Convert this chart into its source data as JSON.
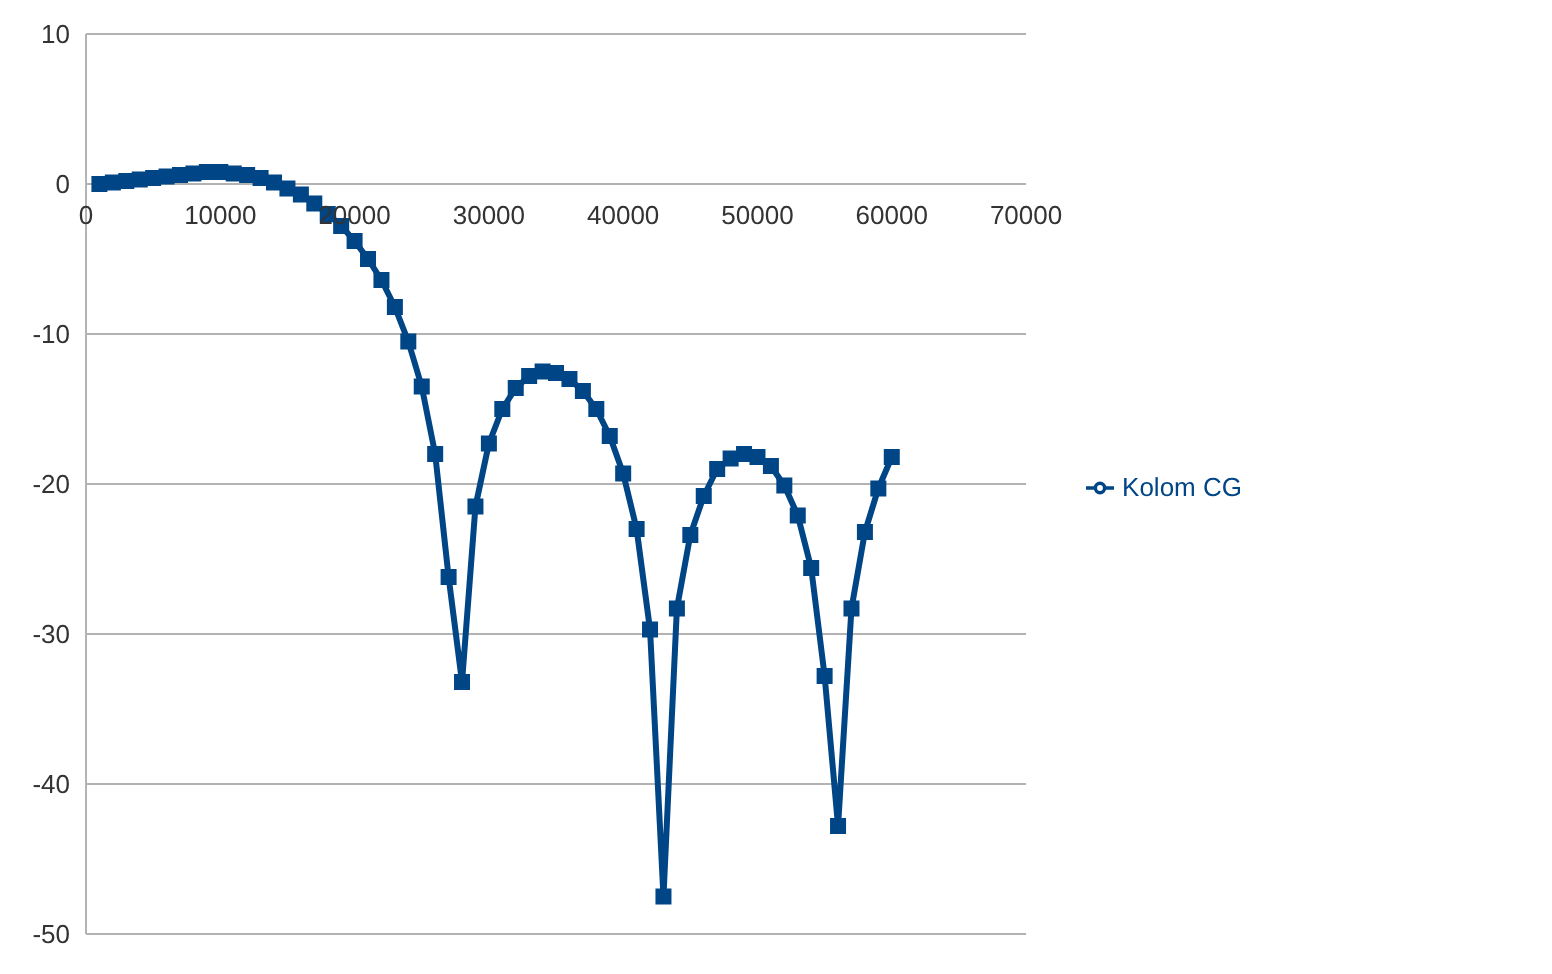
{
  "chart_data": {
    "type": "line",
    "x": [
      1000,
      2000,
      3000,
      4000,
      5000,
      6000,
      7000,
      8000,
      9000,
      10000,
      11000,
      12000,
      13000,
      14000,
      15000,
      16000,
      17000,
      18000,
      19000,
      20000,
      21000,
      22000,
      23000,
      24000,
      25000,
      26000,
      27000,
      28000,
      29000,
      30000,
      31000,
      32000,
      33000,
      34000,
      35000,
      36000,
      37000,
      38000,
      39000,
      40000,
      41000,
      42000,
      43000,
      44000,
      45000,
      46000,
      47000,
      48000,
      49000,
      50000,
      51000,
      52000,
      53000,
      54000,
      55000,
      56000,
      57000,
      58000,
      59000,
      60000
    ],
    "series": [
      {
        "name": "Kolom CG",
        "color": "#004586",
        "values": [
          0,
          0.1,
          0.2,
          0.3,
          0.4,
          0.5,
          0.6,
          0.7,
          0.8,
          0.8,
          0.7,
          0.6,
          0.4,
          0.1,
          -0.3,
          -0.7,
          -1.3,
          -2,
          -2.8,
          -3.8,
          -5,
          -6.4,
          -8.2,
          -10.5,
          -13.5,
          -18,
          -26.2,
          -33.2,
          -21.5,
          -17.3,
          -15,
          -13.6,
          -12.8,
          -12.5,
          -12.6,
          -13,
          -13.8,
          -15,
          -16.8,
          -19.3,
          -23,
          -29.7,
          -47.5,
          -28.3,
          -23.4,
          -20.8,
          -19,
          -18.3,
          -18,
          -18.2,
          -18.8,
          -20.1,
          -22.1,
          -25.6,
          -32.8,
          -42.8,
          -28.3,
          -23.2,
          -20.3,
          -18.2
        ]
      }
    ],
    "xlim": [
      0,
      70000
    ],
    "xticks": [
      0,
      10000,
      20000,
      30000,
      40000,
      50000,
      60000,
      70000
    ],
    "ylim": [
      -50,
      10
    ],
    "yticks": [
      -50,
      -40,
      -30,
      -20,
      -10,
      0,
      10
    ],
    "grid": "y",
    "legend": "right",
    "marker": "square",
    "line_style": "solid"
  }
}
